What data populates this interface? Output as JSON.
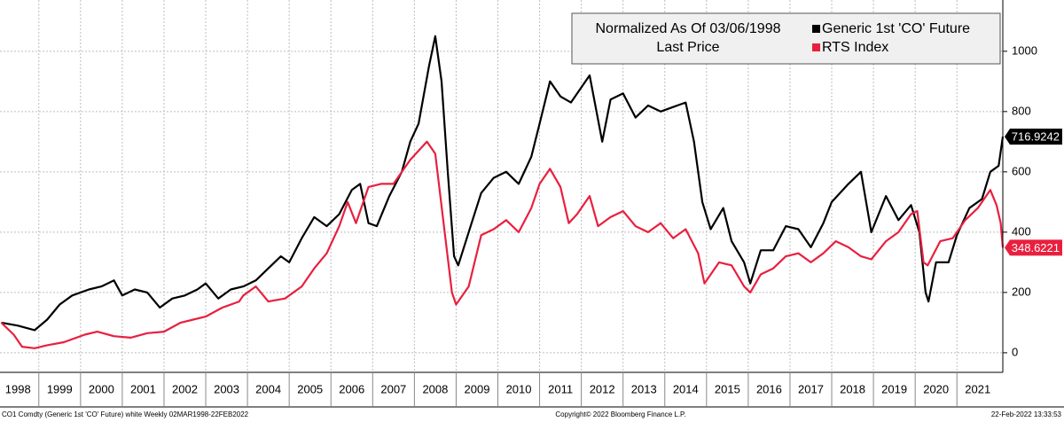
{
  "chart_data": {
    "type": "line",
    "legend_title": "Normalized As Of 03/06/1998",
    "legend_subtitle": "Last Price",
    "legend_position": "upper right",
    "grid": true,
    "xlim": [
      1998.07,
      2022.1
    ],
    "xticks": [
      1998,
      1999,
      2000,
      2001,
      2002,
      2003,
      2004,
      2005,
      2006,
      2007,
      2008,
      2009,
      2010,
      2011,
      2012,
      2013,
      2014,
      2015,
      2016,
      2017,
      2018,
      2019,
      2020,
      2021
    ],
    "ylim": [
      -65,
      1170
    ],
    "yticks": [
      0,
      200,
      400,
      600,
      800,
      1000
    ],
    "footer_left": "CO1 Comdty (Generic 1st 'CO' Future) white  Weekly 02MAR1998-22FEB2022",
    "footer_center": "Copyright© 2022 Bloomberg Finance L.P.",
    "footer_right": "22-Feb-2022 13:33:53",
    "series": [
      {
        "name": "Generic 1st 'CO' Future",
        "color": "#000000",
        "x": [
          1998.1,
          1998.5,
          1998.9,
          1999.2,
          1999.5,
          1999.8,
          2000.2,
          2000.5,
          2000.8,
          2001.0,
          2001.3,
          2001.6,
          2001.9,
          2002.2,
          2002.5,
          2002.8,
          2003.0,
          2003.3,
          2003.6,
          2003.9,
          2004.2,
          2004.5,
          2004.8,
          2005.0,
          2005.3,
          2005.6,
          2005.9,
          2006.2,
          2006.5,
          2006.7,
          2006.9,
          2007.1,
          2007.4,
          2007.7,
          2007.9,
          2008.1,
          2008.35,
          2008.5,
          2008.65,
          2008.8,
          2008.95,
          2009.05,
          2009.3,
          2009.6,
          2009.9,
          2010.2,
          2010.5,
          2010.8,
          2011.0,
          2011.25,
          2011.5,
          2011.75,
          2012.0,
          2012.2,
          2012.5,
          2012.7,
          2013.0,
          2013.3,
          2013.6,
          2013.9,
          2014.3,
          2014.5,
          2014.7,
          2014.9,
          2015.1,
          2015.4,
          2015.6,
          2015.9,
          2016.05,
          2016.3,
          2016.6,
          2016.9,
          2017.2,
          2017.5,
          2017.8,
          2018.0,
          2018.4,
          2018.7,
          2018.95,
          2019.3,
          2019.6,
          2019.9,
          2020.1,
          2020.25,
          2020.32,
          2020.5,
          2020.8,
          2021.0,
          2021.3,
          2021.6,
          2021.8,
          2022.0,
          2022.1
        ],
        "values": [
          100,
          90,
          75,
          110,
          160,
          190,
          210,
          220,
          240,
          190,
          210,
          200,
          150,
          180,
          190,
          210,
          230,
          180,
          210,
          220,
          240,
          280,
          320,
          300,
          380,
          450,
          420,
          460,
          540,
          560,
          430,
          420,
          520,
          600,
          700,
          760,
          950,
          1050,
          900,
          600,
          320,
          290,
          400,
          530,
          580,
          600,
          560,
          650,
          760,
          900,
          850,
          830,
          880,
          920,
          700,
          840,
          860,
          780,
          820,
          800,
          820,
          830,
          700,
          500,
          410,
          480,
          370,
          300,
          230,
          340,
          340,
          420,
          410,
          350,
          430,
          500,
          560,
          600,
          400,
          520,
          440,
          490,
          400,
          200,
          170,
          300,
          300,
          390,
          480,
          510,
          600,
          620,
          716.9242
        ]
      },
      {
        "name": "RTS Index",
        "color": "#e8203f",
        "x": [
          1998.1,
          1998.4,
          1998.6,
          1998.9,
          1999.2,
          1999.6,
          2000.1,
          2000.4,
          2000.8,
          2001.2,
          2001.6,
          2002.0,
          2002.4,
          2002.7,
          2003.0,
          2003.4,
          2003.8,
          2003.9,
          2004.2,
          2004.5,
          2004.9,
          2005.3,
          2005.6,
          2005.9,
          2006.2,
          2006.4,
          2006.6,
          2006.9,
          2007.2,
          2007.5,
          2007.9,
          2008.3,
          2008.5,
          2008.7,
          2008.9,
          2009.0,
          2009.3,
          2009.6,
          2009.9,
          2010.2,
          2010.5,
          2010.8,
          2011.0,
          2011.25,
          2011.5,
          2011.7,
          2011.9,
          2012.2,
          2012.4,
          2012.7,
          2013.0,
          2013.3,
          2013.6,
          2013.9,
          2014.2,
          2014.5,
          2014.8,
          2014.95,
          2015.3,
          2015.6,
          2015.9,
          2016.05,
          2016.3,
          2016.6,
          2016.9,
          2017.2,
          2017.5,
          2017.8,
          2018.1,
          2018.4,
          2018.7,
          2018.95,
          2019.3,
          2019.6,
          2019.9,
          2020.05,
          2020.2,
          2020.3,
          2020.6,
          2020.9,
          2021.2,
          2021.5,
          2021.8,
          2021.95,
          2022.05,
          2022.1
        ],
        "values": [
          100,
          60,
          20,
          15,
          25,
          35,
          60,
          70,
          55,
          50,
          65,
          70,
          100,
          110,
          120,
          150,
          170,
          190,
          220,
          170,
          180,
          220,
          280,
          330,
          420,
          500,
          430,
          550,
          560,
          560,
          640,
          700,
          660,
          430,
          200,
          160,
          220,
          390,
          410,
          440,
          400,
          480,
          560,
          610,
          550,
          430,
          460,
          520,
          420,
          450,
          470,
          420,
          400,
          430,
          380,
          410,
          330,
          230,
          300,
          290,
          220,
          200,
          260,
          280,
          320,
          330,
          300,
          330,
          370,
          350,
          320,
          310,
          370,
          400,
          460,
          470,
          300,
          290,
          370,
          380,
          440,
          480,
          540,
          490,
          430,
          348.6221
        ]
      }
    ]
  }
}
